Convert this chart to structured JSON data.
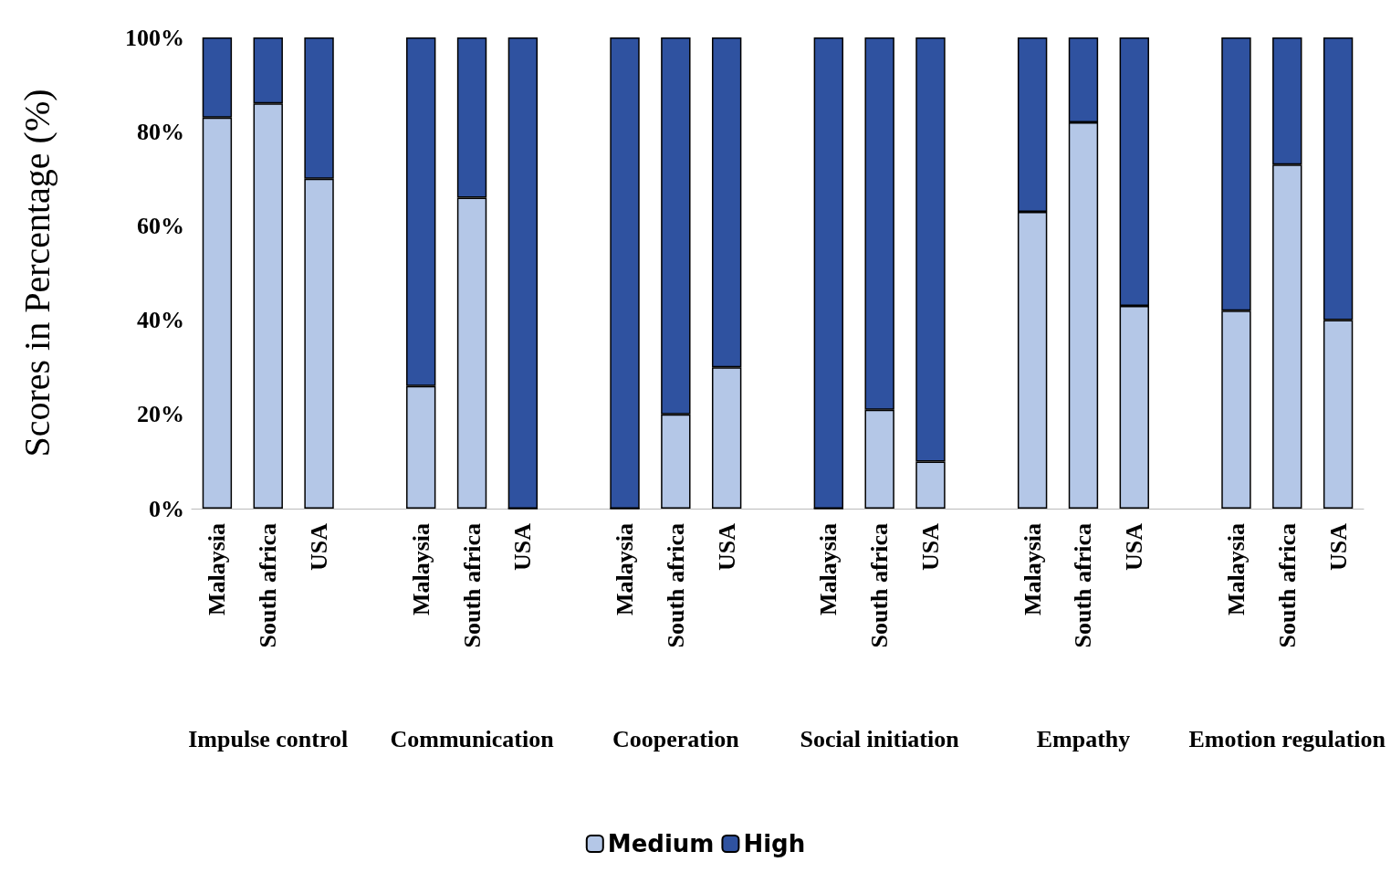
{
  "chart_data": {
    "type": "bar",
    "stacked": true,
    "ylabel": "Scores in Percentage (%)",
    "categories": [
      "Malaysia",
      "South africa",
      "USA",
      null,
      "Malaysia",
      "South africa",
      "USA",
      null,
      "Malaysia",
      "South africa",
      "USA",
      null,
      "Malaysia",
      "South africa",
      "USA",
      null,
      "Malaysia",
      "South africa",
      "USA",
      null,
      "Malaysia",
      "South africa",
      "USA"
    ],
    "series": [
      {
        "name": "Medium",
        "color": "#b4c7e7",
        "values": [
          83,
          86,
          70,
          null,
          26,
          66,
          0,
          null,
          0,
          20,
          30,
          null,
          0,
          21,
          10,
          null,
          63,
          82,
          43,
          null,
          42,
          73,
          40
        ]
      },
      {
        "name": "High",
        "color": "#2f52a0",
        "values": [
          17,
          14,
          30,
          null,
          74,
          34,
          100,
          null,
          100,
          80,
          70,
          null,
          100,
          79,
          90,
          null,
          37,
          18,
          57,
          null,
          58,
          27,
          60
        ]
      }
    ],
    "ylim": [
      0,
      100
    ],
    "yticks": [
      {
        "value": 0,
        "label": "0%"
      },
      {
        "value": 20,
        "label": "20%"
      },
      {
        "value": 40,
        "label": "40%"
      },
      {
        "value": 60,
        "label": "60%"
      },
      {
        "value": 80,
        "label": "80%"
      },
      {
        "value": 100,
        "label": "100%"
      }
    ],
    "annotations": [
      "Impulse control",
      "Communication",
      "Cooperation",
      "Social initiation",
      "Empathy",
      "Emotion regulation"
    ],
    "grid": false,
    "legend": "bottom"
  }
}
